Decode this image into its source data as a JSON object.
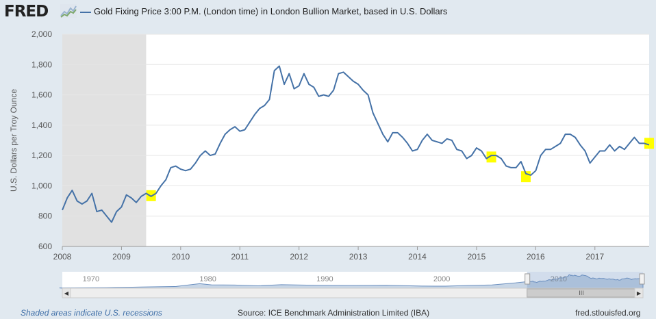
{
  "header": {
    "logo_text": "FRED",
    "legend_text": "Gold Fixing Price 3:00 P.M. (London time) in London Bullion Market, based in U.S. Dollars"
  },
  "colors": {
    "series": "#4572a7",
    "recession": "#e1e1e1",
    "highlight": "#ffff00",
    "background": "#e1e9f0"
  },
  "chart_data": {
    "type": "line",
    "title": "Gold Fixing Price 3:00 P.M. (London time) in London Bullion Market, based in U.S. Dollars",
    "ylabel": "U.S. Dollars per Troy Ounce",
    "xlabel": "",
    "ylim": [
      600,
      2000
    ],
    "xlim": [
      "2008-01",
      "2017-12"
    ],
    "y_ticks": [
      "600",
      "800",
      "1,000",
      "1,200",
      "1,400",
      "1,600",
      "1,800",
      "2,000"
    ],
    "x_ticks": [
      "2008",
      "2009",
      "2010",
      "2011",
      "2012",
      "2013",
      "2014",
      "2015",
      "2016",
      "2017"
    ],
    "grid": true,
    "recession": {
      "start": "2008-01",
      "end": "2009-06"
    },
    "series": [
      {
        "name": "Gold Fixing Price 3:00 P.M. (London time) in London Bullion Market, based in U.S. Dollars",
        "x": [
          "2008-01",
          "2008-02",
          "2008-03",
          "2008-04",
          "2008-05",
          "2008-06",
          "2008-07",
          "2008-08",
          "2008-09",
          "2008-10",
          "2008-11",
          "2008-12",
          "2009-01",
          "2009-02",
          "2009-03",
          "2009-04",
          "2009-05",
          "2009-06",
          "2009-07",
          "2009-08",
          "2009-09",
          "2009-10",
          "2009-11",
          "2009-12",
          "2010-01",
          "2010-02",
          "2010-03",
          "2010-04",
          "2010-05",
          "2010-06",
          "2010-07",
          "2010-08",
          "2010-09",
          "2010-10",
          "2010-11",
          "2010-12",
          "2011-01",
          "2011-02",
          "2011-03",
          "2011-04",
          "2011-05",
          "2011-06",
          "2011-07",
          "2011-08",
          "2011-09",
          "2011-10",
          "2011-11",
          "2011-12",
          "2012-01",
          "2012-02",
          "2012-03",
          "2012-04",
          "2012-05",
          "2012-06",
          "2012-07",
          "2012-08",
          "2012-09",
          "2012-10",
          "2012-11",
          "2012-12",
          "2013-01",
          "2013-02",
          "2013-03",
          "2013-04",
          "2013-05",
          "2013-06",
          "2013-07",
          "2013-08",
          "2013-09",
          "2013-10",
          "2013-11",
          "2013-12",
          "2014-01",
          "2014-02",
          "2014-03",
          "2014-04",
          "2014-05",
          "2014-06",
          "2014-07",
          "2014-08",
          "2014-09",
          "2014-10",
          "2014-11",
          "2014-12",
          "2015-01",
          "2015-02",
          "2015-03",
          "2015-04",
          "2015-05",
          "2015-06",
          "2015-07",
          "2015-08",
          "2015-09",
          "2015-10",
          "2015-11",
          "2015-12",
          "2016-01",
          "2016-02",
          "2016-03",
          "2016-04",
          "2016-05",
          "2016-06",
          "2016-07",
          "2016-08",
          "2016-09",
          "2016-10",
          "2016-11",
          "2016-12",
          "2017-01",
          "2017-02",
          "2017-03",
          "2017-04",
          "2017-05",
          "2017-06",
          "2017-07",
          "2017-08",
          "2017-09",
          "2017-10",
          "2017-11",
          "2017-12"
        ],
        "values": [
          840,
          920,
          970,
          900,
          880,
          900,
          950,
          830,
          840,
          800,
          760,
          830,
          860,
          940,
          920,
          890,
          930,
          950,
          930,
          950,
          1000,
          1040,
          1120,
          1130,
          1110,
          1100,
          1110,
          1150,
          1200,
          1230,
          1200,
          1210,
          1280,
          1340,
          1370,
          1390,
          1360,
          1370,
          1420,
          1470,
          1510,
          1530,
          1570,
          1760,
          1790,
          1670,
          1740,
          1640,
          1660,
          1740,
          1670,
          1650,
          1590,
          1600,
          1590,
          1630,
          1740,
          1750,
          1720,
          1690,
          1670,
          1630,
          1600,
          1480,
          1410,
          1340,
          1290,
          1350,
          1350,
          1320,
          1280,
          1230,
          1240,
          1300,
          1340,
          1300,
          1290,
          1280,
          1310,
          1300,
          1240,
          1230,
          1180,
          1200,
          1250,
          1230,
          1180,
          1200,
          1200,
          1180,
          1130,
          1120,
          1120,
          1160,
          1080,
          1070,
          1100,
          1200,
          1240,
          1240,
          1260,
          1280,
          1340,
          1340,
          1320,
          1270,
          1230,
          1150,
          1190,
          1230,
          1230,
          1270,
          1230,
          1260,
          1240,
          1280,
          1320,
          1280,
          1280,
          1270
        ]
      }
    ],
    "highlights": [
      {
        "x": "2009-07",
        "value": 935
      },
      {
        "x": "2015-04",
        "value": 1190
      },
      {
        "x": "2015-11",
        "value": 1060
      },
      {
        "x": "2017-12",
        "value": 1280
      }
    ],
    "navigator": {
      "ticks": [
        "1970",
        "1980",
        "1990",
        "2000",
        "2010"
      ],
      "x_range": [
        "1968-04",
        "2017-12"
      ],
      "selection": [
        "2008-01",
        "2017-12"
      ]
    }
  },
  "footer": {
    "recession_note": "Shaded areas indicate U.S. recessions",
    "source": "Source: ICE Benchmark Administration Limited (IBA)",
    "link": "fred.stlouisfed.org"
  }
}
